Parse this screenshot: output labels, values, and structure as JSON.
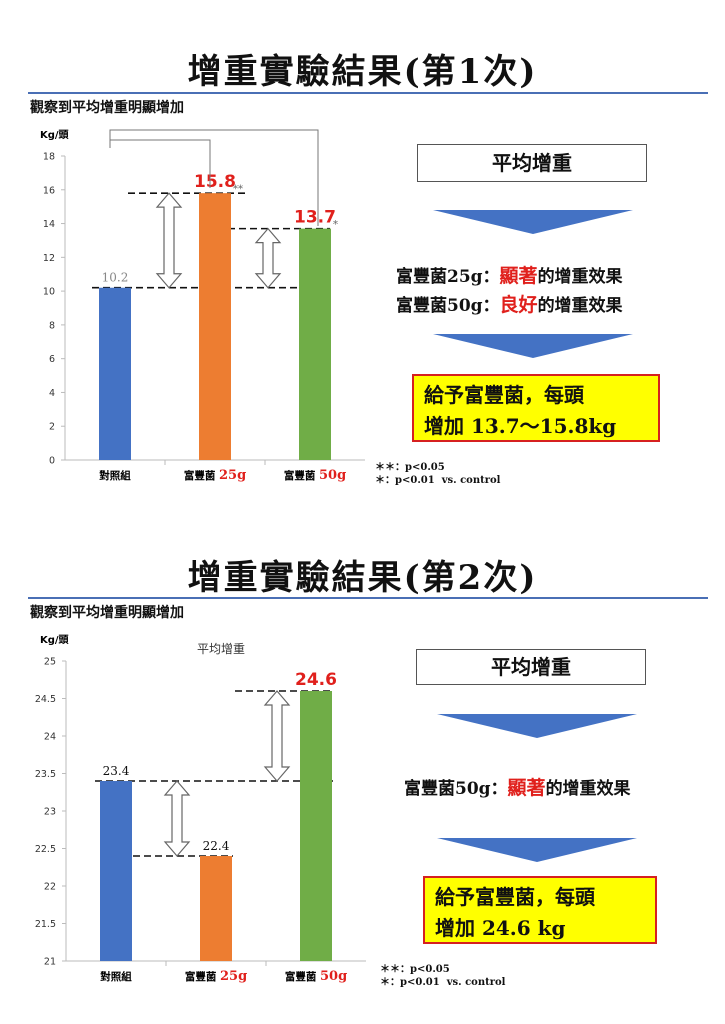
{
  "panel1": {
    "title": "增重實驗結果(第1次)",
    "subtitle": "觀察到平均增重明顯增加",
    "box_title": "平均增重",
    "effect_lines": [
      {
        "pre": "富豐菌25g：",
        "hl": "顯著",
        "post": "的增重效果"
      },
      {
        "pre": "富豐菌50g：",
        "hl": "良好",
        "post": "的增重效果"
      }
    ],
    "result_line1": "給予富豐菌，每頭",
    "result_line2": "增加 13.7～15.8kg",
    "notes": "＊＊：p<0.05\n＊：p<0.01  vs. control"
  },
  "panel2": {
    "title": "增重實驗結果(第2次)",
    "subtitle": "觀察到平均增重明顯增加",
    "box_title": "平均增重",
    "effect_lines": [
      {
        "pre": "富豐菌50g：",
        "hl": "顯著",
        "post": "的增重效果"
      }
    ],
    "result_line1": "給予富豐菌，每頭",
    "result_line2": "增加 24.6 kg",
    "notes": "＊＊：p<0.05\n＊：p<0.01  vs. control"
  },
  "colors": {
    "blue": "#4472c4",
    "orange": "#ed7d31",
    "green": "#70ad47",
    "red": "#e0201c",
    "arrow": "#4472c4",
    "highlight_box": "#ffff00"
  },
  "chart_data": [
    {
      "type": "bar",
      "ylabel": "Kg/頭",
      "ylim": [
        0,
        18
      ],
      "yticks": [
        0,
        2,
        4,
        6,
        8,
        10,
        12,
        14,
        16,
        18
      ],
      "categories": [
        {
          "name": "對照組",
          "dose": ""
        },
        {
          "name": "富豐菌 ",
          "dose": "25g"
        },
        {
          "name": "富豐菌 ",
          "dose": "50g"
        }
      ],
      "values": [
        10.2,
        15.8,
        13.7
      ],
      "value_labels": [
        "10.2",
        "15.8",
        "13.7"
      ],
      "significance": [
        "",
        "**",
        "*"
      ],
      "bar_colors": [
        "#4472c4",
        "#ed7d31",
        "#70ad47"
      ],
      "label_colors": [
        "#888888",
        "#e0201c",
        "#e0201c"
      ],
      "chart_title": "",
      "grid": false
    },
    {
      "type": "bar",
      "ylabel": "Kg/頭",
      "ylim": [
        21,
        25
      ],
      "yticks": [
        21,
        21.5,
        22,
        22.5,
        23,
        23.5,
        24,
        24.5,
        25
      ],
      "categories": [
        {
          "name": "對照組",
          "dose": ""
        },
        {
          "name": "富豐菌 ",
          "dose": "25g"
        },
        {
          "name": "富豐菌 ",
          "dose": "50g"
        }
      ],
      "values": [
        23.4,
        22.4,
        24.6
      ],
      "value_labels": [
        "23.4",
        "22.4",
        "24.6"
      ],
      "significance": [
        "",
        "",
        ""
      ],
      "bar_colors": [
        "#4472c4",
        "#ed7d31",
        "#70ad47"
      ],
      "label_colors": [
        "#111111",
        "#111111",
        "#e0201c"
      ],
      "chart_title": "平均增重",
      "grid": false
    }
  ]
}
